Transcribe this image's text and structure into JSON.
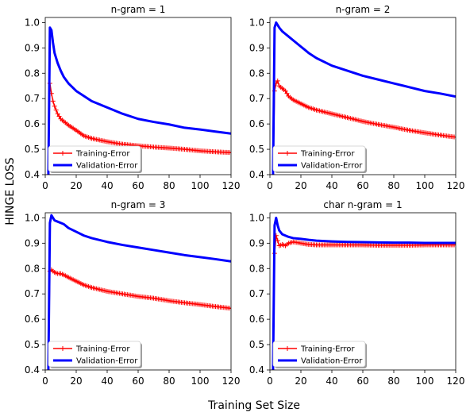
{
  "figure": {
    "xlabel": "Training Set Size",
    "ylabel": "HINGE LOSS"
  },
  "chart_data": [
    {
      "type": "line",
      "title": "n-gram = 1",
      "xlim": [
        0,
        120
      ],
      "ylim": [
        0.4,
        1.02
      ],
      "xticks": [
        0,
        20,
        40,
        60,
        80,
        100,
        120
      ],
      "yticks": [
        0.4,
        0.5,
        0.6,
        0.7,
        0.8,
        0.9,
        1.0
      ],
      "legend": "lower-left",
      "series": [
        {
          "name": "Training-Error",
          "color": "#ff0000",
          "marker": "plus",
          "x": [
            2,
            3,
            4,
            5,
            6,
            8,
            10,
            12,
            15,
            20,
            25,
            30,
            40,
            50,
            60,
            70,
            80,
            90,
            100,
            110,
            120
          ],
          "y": [
            0.4,
            0.76,
            0.72,
            0.69,
            0.67,
            0.64,
            0.62,
            0.61,
            0.595,
            0.575,
            0.553,
            0.543,
            0.53,
            0.52,
            0.514,
            0.509,
            0.505,
            0.5,
            0.494,
            0.49,
            0.487
          ]
        },
        {
          "name": "Validation-Error",
          "color": "#0000ff",
          "x": [
            2,
            3,
            4,
            5,
            6,
            8,
            10,
            12,
            15,
            20,
            25,
            30,
            40,
            50,
            60,
            70,
            80,
            90,
            100,
            110,
            120
          ],
          "y": [
            0.4,
            0.98,
            0.97,
            0.92,
            0.88,
            0.84,
            0.81,
            0.785,
            0.76,
            0.73,
            0.71,
            0.69,
            0.665,
            0.64,
            0.62,
            0.608,
            0.598,
            0.585,
            0.578,
            0.57,
            0.562
          ]
        }
      ]
    },
    {
      "type": "line",
      "title": "n-gram = 2",
      "xlim": [
        0,
        120
      ],
      "ylim": [
        0.4,
        1.02
      ],
      "xticks": [
        0,
        20,
        40,
        60,
        80,
        100,
        120
      ],
      "yticks": [
        0.4,
        0.5,
        0.6,
        0.7,
        0.8,
        0.9,
        1.0
      ],
      "legend": "lower-left",
      "series": [
        {
          "name": "Training-Error",
          "color": "#ff0000",
          "marker": "plus",
          "x": [
            2,
            3,
            4,
            5,
            6,
            8,
            10,
            12,
            15,
            20,
            25,
            30,
            40,
            50,
            60,
            70,
            80,
            90,
            100,
            110,
            120
          ],
          "y": [
            0.4,
            0.73,
            0.76,
            0.77,
            0.75,
            0.74,
            0.73,
            0.71,
            0.695,
            0.68,
            0.665,
            0.655,
            0.64,
            0.625,
            0.61,
            0.598,
            0.587,
            0.575,
            0.565,
            0.556,
            0.548
          ]
        },
        {
          "name": "Validation-Error",
          "color": "#0000ff",
          "x": [
            2,
            3,
            4,
            5,
            6,
            8,
            10,
            12,
            15,
            20,
            25,
            30,
            40,
            50,
            60,
            70,
            80,
            90,
            100,
            110,
            120
          ],
          "y": [
            0.4,
            0.98,
            1.0,
            0.99,
            0.98,
            0.965,
            0.955,
            0.945,
            0.93,
            0.905,
            0.88,
            0.86,
            0.83,
            0.81,
            0.79,
            0.775,
            0.76,
            0.745,
            0.73,
            0.72,
            0.708
          ]
        }
      ]
    },
    {
      "type": "line",
      "title": "n-gram = 3",
      "xlim": [
        0,
        120
      ],
      "ylim": [
        0.4,
        1.02
      ],
      "xticks": [
        0,
        20,
        40,
        60,
        80,
        100,
        120
      ],
      "yticks": [
        0.4,
        0.5,
        0.6,
        0.7,
        0.8,
        0.9,
        1.0
      ],
      "legend": "lower-left",
      "series": [
        {
          "name": "Training-Error",
          "color": "#ff0000",
          "marker": "plus",
          "x": [
            2,
            3,
            4,
            5,
            6,
            8,
            10,
            12,
            15,
            20,
            25,
            30,
            40,
            50,
            60,
            70,
            80,
            90,
            100,
            110,
            120
          ],
          "y": [
            0.4,
            0.79,
            0.795,
            0.79,
            0.785,
            0.78,
            0.78,
            0.775,
            0.765,
            0.75,
            0.735,
            0.725,
            0.71,
            0.7,
            0.69,
            0.683,
            0.673,
            0.665,
            0.658,
            0.65,
            0.643
          ]
        },
        {
          "name": "Validation-Error",
          "color": "#0000ff",
          "x": [
            2,
            3,
            4,
            5,
            6,
            8,
            10,
            12,
            15,
            20,
            25,
            30,
            40,
            50,
            60,
            70,
            80,
            90,
            100,
            110,
            120
          ],
          "y": [
            0.4,
            0.98,
            1.01,
            1.0,
            0.99,
            0.985,
            0.98,
            0.975,
            0.96,
            0.945,
            0.93,
            0.92,
            0.905,
            0.893,
            0.883,
            0.873,
            0.863,
            0.853,
            0.845,
            0.837,
            0.828
          ]
        }
      ]
    },
    {
      "type": "line",
      "title": "char n-gram = 1",
      "xlim": [
        0,
        120
      ],
      "ylim": [
        0.4,
        1.02
      ],
      "xticks": [
        0,
        20,
        40,
        60,
        80,
        100,
        120
      ],
      "yticks": [
        0.4,
        0.5,
        0.6,
        0.7,
        0.8,
        0.9,
        1.0
      ],
      "legend": "lower-left",
      "series": [
        {
          "name": "Training-Error",
          "color": "#ff0000",
          "marker": "plus",
          "x": [
            2,
            3,
            4,
            5,
            6,
            8,
            10,
            12,
            15,
            20,
            25,
            30,
            40,
            50,
            60,
            70,
            80,
            90,
            100,
            110,
            120
          ],
          "y": [
            0.4,
            0.86,
            0.93,
            0.91,
            0.89,
            0.895,
            0.89,
            0.9,
            0.905,
            0.9,
            0.895,
            0.893,
            0.893,
            0.893,
            0.893,
            0.892,
            0.892,
            0.892,
            0.893,
            0.893,
            0.893
          ]
        },
        {
          "name": "Validation-Error",
          "color": "#0000ff",
          "x": [
            2,
            3,
            4,
            5,
            6,
            8,
            10,
            12,
            15,
            20,
            25,
            30,
            40,
            50,
            60,
            70,
            80,
            90,
            100,
            110,
            120
          ],
          "y": [
            0.4,
            0.97,
            1.0,
            0.97,
            0.95,
            0.935,
            0.93,
            0.925,
            0.92,
            0.917,
            0.913,
            0.91,
            0.907,
            0.905,
            0.904,
            0.903,
            0.902,
            0.902,
            0.901,
            0.901,
            0.901
          ]
        }
      ]
    }
  ]
}
